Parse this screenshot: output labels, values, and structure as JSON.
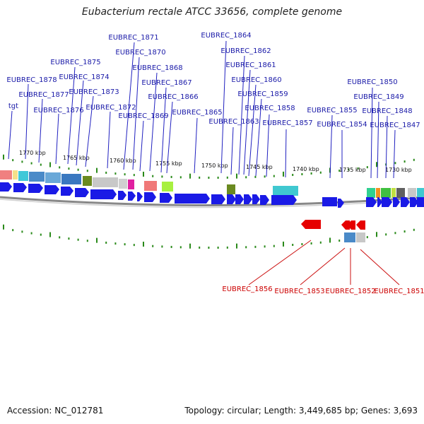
{
  "title": "Eubacterium rectale ATCC 33656, complete genome",
  "footer": {
    "accession": "Accession: NC_012781",
    "summary": "Topology: circular; Length: 3,449,685 bp; Genes: 3,693"
  },
  "colors": {
    "forward_gene": "#1a1ae6",
    "reverse_gene": "#e60000",
    "forward_label": "#1a1aa8",
    "reverse_label": "#cc0000",
    "backbone": "#808080",
    "tick": "#2a8a1a"
  },
  "forward_labels": [
    "EUBREC_1878",
    "EUBREC_1877",
    "EUBREC_1876",
    "EUBREC_1875",
    "EUBREC_1874",
    "EUBREC_1873",
    "EUBREC_1872",
    "EUBREC_1871",
    "EUBREC_1870",
    "EUBREC_1869",
    "EUBREC_1868",
    "EUBREC_1867",
    "EUBREC_1866",
    "EUBREC_1865",
    "EUBREC_1864",
    "EUBREC_1863",
    "EUBREC_1862",
    "EUBREC_1861",
    "EUBREC_1860",
    "EUBREC_1859",
    "EUBREC_1858",
    "EUBREC_1857",
    "EUBREC_1855",
    "EUBREC_1854",
    "EUBREC_1850",
    "EUBREC_1849",
    "EUBREC_1848",
    "EUBREC_1847",
    "tgt"
  ],
  "reverse_labels": [
    "EUBREC_1856",
    "EUBREC_1853",
    "EUBREC_1852",
    "EUBREC_1851"
  ],
  "kbp_labels": [
    "1770 kbp",
    "1765 kbp",
    "1760 kbp",
    "1755 kbp",
    "1750 kbp",
    "1745 kbp",
    "1740 kbp",
    "1735 kbp",
    "1730 kbp"
  ]
}
